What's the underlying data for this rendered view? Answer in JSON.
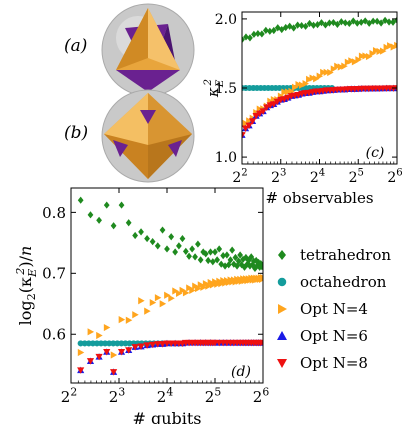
{
  "colors": {
    "tetrahedron": "#1f8a1f",
    "octahedron": "#149c9c",
    "opt4": "#ffa51e",
    "opt6": "#1a1ae6",
    "opt8": "#ee1111",
    "solid_gold": "#e8a53c",
    "solid_purple": "#6a2190",
    "sphere": "#c8c8c8"
  },
  "panel_labels": {
    "a": "(a)",
    "b": "(b)",
    "c": "(c)",
    "d": "(d)"
  },
  "legend": [
    {
      "label": "tetrahedron",
      "marker": "diamond",
      "color_key": "tetrahedron"
    },
    {
      "label": "octahedron",
      "marker": "circle",
      "color_key": "octahedron"
    },
    {
      "label": "Opt N=4",
      "marker": "triangle-right",
      "color_key": "opt4"
    },
    {
      "label": "Opt N=6",
      "marker": "triangle-up",
      "color_key": "opt6"
    },
    {
      "label": "Opt N=8",
      "marker": "triangle-down",
      "color_key": "opt8"
    }
  ],
  "chart_data": [
    {
      "id": "c",
      "type": "scatter",
      "xlabel": "# observables",
      "ylabel": "κ_E^2",
      "xscale": "log2",
      "xlim": [
        4,
        64
      ],
      "ylim": [
        0.95,
        2.05
      ],
      "xticks": [
        {
          "v": 4,
          "b": "2",
          "e": "2"
        },
        {
          "v": 8,
          "b": "2",
          "e": "3"
        },
        {
          "v": 16,
          "b": "2",
          "e": "4"
        },
        {
          "v": 32,
          "b": "2",
          "e": "5"
        },
        {
          "v": 64,
          "b": "2",
          "e": "6"
        }
      ],
      "yticks": [
        {
          "v": 1.0,
          "t": "1.0"
        },
        {
          "v": 1.5,
          "t": "1.5"
        },
        {
          "v": 2.0,
          "t": "2.0"
        }
      ],
      "series": [
        {
          "key": "tetrahedron",
          "marker": "diamond",
          "x_range": [
            4,
            64
          ],
          "n": 40,
          "fn": "tetra_c"
        },
        {
          "key": "octahedron",
          "marker": "circle",
          "x_range": [
            4,
            20
          ],
          "n": 25,
          "fn": "const_c",
          "value": 1.5
        },
        {
          "key": "opt4",
          "marker": "triangle-right",
          "x_range": [
            4,
            64
          ],
          "n": 45,
          "fn": "opt4_c"
        },
        {
          "key": "opt6",
          "marker": "triangle-up",
          "x_range": [
            4,
            64
          ],
          "n": 45,
          "fn": "opt6_c"
        },
        {
          "key": "opt8",
          "marker": "triangle-down",
          "x_range": [
            4,
            64
          ],
          "n": 45,
          "fn": "opt6_c"
        }
      ]
    },
    {
      "id": "d",
      "type": "scatter",
      "xlabel": "# qubits",
      "ylabel": "log2(κ_E^2)/n",
      "xscale": "log2",
      "xlim": [
        4,
        64
      ],
      "ylim": [
        0.52,
        0.84
      ],
      "xticks": [
        {
          "v": 4,
          "b": "2",
          "e": "2"
        },
        {
          "v": 8,
          "b": "2",
          "e": "3"
        },
        {
          "v": 16,
          "b": "2",
          "e": "4"
        },
        {
          "v": 32,
          "b": "2",
          "e": "5"
        },
        {
          "v": 64,
          "b": "2",
          "e": "6"
        }
      ],
      "yticks": [
        {
          "v": 0.6,
          "t": "0.6"
        },
        {
          "v": 0.7,
          "t": "0.7"
        },
        {
          "v": 0.8,
          "t": "0.8"
        }
      ],
      "series": [
        {
          "key": "tetrahedron",
          "marker": "diamond",
          "points": [
            [
              4.6,
              0.82
            ],
            [
              5.3,
              0.796
            ],
            [
              6.0,
              0.787
            ],
            [
              6.7,
              0.812
            ],
            [
              7.4,
              0.778
            ],
            [
              8.3,
              0.812
            ],
            [
              9.2,
              0.783
            ],
            [
              10.1,
              0.762
            ],
            [
              11.0,
              0.768
            ],
            [
              12.0,
              0.757
            ],
            [
              13.0,
              0.752
            ],
            [
              14.0,
              0.745
            ],
            [
              15.0,
              0.771
            ],
            [
              16.0,
              0.74
            ],
            [
              17.0,
              0.76
            ],
            [
              18.0,
              0.735
            ],
            [
              19.0,
              0.745
            ],
            [
              20.0,
              0.757
            ],
            [
              21.0,
              0.736
            ],
            [
              22.0,
              0.728
            ],
            [
              23.0,
              0.74
            ],
            [
              24.0,
              0.727
            ],
            [
              25.0,
              0.748
            ],
            [
              26.0,
              0.722
            ],
            [
              27.0,
              0.735
            ],
            [
              28.0,
              0.732
            ],
            [
              29.0,
              0.721
            ],
            [
              30.0,
              0.735
            ],
            [
              31.0,
              0.719
            ],
            [
              32.0,
              0.735
            ],
            [
              33.0,
              0.722
            ],
            [
              34.0,
              0.74
            ],
            [
              35.0,
              0.715
            ],
            [
              36.0,
              0.729
            ],
            [
              37.0,
              0.712
            ],
            [
              38.0,
              0.73
            ],
            [
              39.0,
              0.714
            ],
            [
              40.0,
              0.722
            ],
            [
              41.0,
              0.738
            ],
            [
              42.0,
              0.715
            ],
            [
              43.0,
              0.726
            ],
            [
              44.0,
              0.712
            ],
            [
              45.0,
              0.72
            ],
            [
              46.0,
              0.73
            ],
            [
              47.0,
              0.714
            ],
            [
              48.0,
              0.723
            ],
            [
              49.0,
              0.71
            ],
            [
              50.0,
              0.726
            ],
            [
              51.0,
              0.715
            ],
            [
              52.0,
              0.721
            ],
            [
              53.0,
              0.712
            ],
            [
              54.0,
              0.727
            ],
            [
              55.0,
              0.714
            ],
            [
              56.0,
              0.72
            ],
            [
              57.0,
              0.708
            ],
            [
              58.0,
              0.721
            ],
            [
              59.0,
              0.713
            ],
            [
              60.0,
              0.718
            ],
            [
              61.0,
              0.71
            ],
            [
              62.0,
              0.716
            ],
            [
              63.0,
              0.711
            ],
            [
              64.0,
              0.714
            ]
          ]
        },
        {
          "key": "octahedron",
          "marker": "circle",
          "x_range": [
            4.6,
            20
          ],
          "n": 26,
          "fn": "const_d",
          "value": 0.585
        },
        {
          "key": "opt4",
          "marker": "triangle-right",
          "points": [
            [
              4.6,
              0.57
            ],
            [
              5.3,
              0.604
            ],
            [
              6.0,
              0.598
            ],
            [
              6.7,
              0.611
            ],
            [
              7.4,
              0.566
            ],
            [
              8.3,
              0.624
            ],
            [
              9.2,
              0.623
            ],
            [
              10.1,
              0.632
            ],
            [
              11.0,
              0.655
            ],
            [
              12.0,
              0.638
            ],
            [
              13.0,
              0.652
            ],
            [
              14.0,
              0.66
            ],
            [
              15.0,
              0.65
            ],
            [
              16.0,
              0.664
            ],
            [
              17.0,
              0.659
            ],
            [
              18.0,
              0.671
            ],
            [
              19.0,
              0.667
            ],
            [
              20.0,
              0.672
            ],
            [
              21.0,
              0.668
            ],
            [
              22.0,
              0.676
            ],
            [
              23.0,
              0.672
            ],
            [
              24.0,
              0.679
            ],
            [
              25.0,
              0.675
            ],
            [
              26.0,
              0.681
            ],
            [
              27.0,
              0.677
            ],
            [
              28.0,
              0.683
            ],
            [
              29.0,
              0.679
            ],
            [
              30.0,
              0.685
            ],
            [
              31.0,
              0.681
            ],
            [
              32.0,
              0.686
            ],
            [
              33.0,
              0.682
            ],
            [
              34.0,
              0.687
            ],
            [
              35.0,
              0.683
            ],
            [
              36.0,
              0.688
            ],
            [
              37.0,
              0.684
            ],
            [
              38.0,
              0.688
            ],
            [
              39.0,
              0.685
            ],
            [
              40.0,
              0.689
            ],
            [
              41.0,
              0.686
            ],
            [
              42.0,
              0.689
            ],
            [
              43.0,
              0.686
            ],
            [
              44.0,
              0.69
            ],
            [
              45.0,
              0.687
            ],
            [
              46.0,
              0.69
            ],
            [
              47.0,
              0.687
            ],
            [
              48.0,
              0.691
            ],
            [
              49.0,
              0.688
            ],
            [
              50.0,
              0.691
            ],
            [
              51.0,
              0.688
            ],
            [
              52.0,
              0.691
            ],
            [
              53.0,
              0.689
            ],
            [
              54.0,
              0.692
            ],
            [
              55.0,
              0.689
            ],
            [
              56.0,
              0.692
            ],
            [
              57.0,
              0.689
            ],
            [
              58.0,
              0.692
            ],
            [
              59.0,
              0.69
            ],
            [
              60.0,
              0.692
            ],
            [
              61.0,
              0.69
            ],
            [
              62.0,
              0.693
            ],
            [
              63.0,
              0.69
            ],
            [
              64.0,
              0.693
            ]
          ]
        },
        {
          "key": "opt6",
          "marker": "triangle-up",
          "points": [
            [
              4.6,
              0.541
            ],
            [
              5.3,
              0.556
            ],
            [
              6.0,
              0.563
            ],
            [
              6.7,
              0.571
            ],
            [
              7.4,
              0.538
            ],
            [
              8.3,
              0.571
            ],
            [
              9.2,
              0.574
            ],
            [
              10.1,
              0.579
            ],
            [
              11.0,
              0.58
            ],
            [
              12.0,
              0.582
            ],
            [
              13.0,
              0.583
            ],
            [
              14.0,
              0.584
            ],
            [
              15.0,
              0.584
            ],
            [
              16.0,
              0.585
            ],
            [
              18.0,
              0.585
            ],
            [
              20.0,
              0.585
            ],
            [
              22.0,
              0.586
            ],
            [
              24.0,
              0.586
            ],
            [
              26.0,
              0.586
            ],
            [
              28.0,
              0.586
            ],
            [
              30.0,
              0.586
            ],
            [
              32.0,
              0.586
            ],
            [
              34.0,
              0.586
            ],
            [
              36.0,
              0.586
            ],
            [
              38.0,
              0.586
            ],
            [
              40.0,
              0.586
            ],
            [
              42.0,
              0.586
            ],
            [
              44.0,
              0.586
            ],
            [
              46.0,
              0.586
            ],
            [
              48.0,
              0.586
            ],
            [
              50.0,
              0.586
            ],
            [
              52.0,
              0.586
            ],
            [
              54.0,
              0.586
            ],
            [
              56.0,
              0.586
            ],
            [
              58.0,
              0.586
            ],
            [
              60.0,
              0.586
            ],
            [
              62.0,
              0.586
            ],
            [
              64.0,
              0.586
            ]
          ]
        },
        {
          "key": "opt8",
          "marker": "triangle-down",
          "points": [
            [
              4.6,
              0.541
            ],
            [
              5.3,
              0.556
            ],
            [
              6.0,
              0.563
            ],
            [
              6.7,
              0.571
            ],
            [
              7.4,
              0.538
            ],
            [
              8.3,
              0.571
            ],
            [
              9.2,
              0.574
            ],
            [
              10.1,
              0.579
            ],
            [
              11.0,
              0.58
            ],
            [
              12.0,
              0.582
            ],
            [
              13.0,
              0.583
            ],
            [
              14.0,
              0.584
            ],
            [
              15.0,
              0.584
            ],
            [
              16.0,
              0.585
            ],
            [
              17.0,
              0.585
            ],
            [
              18.0,
              0.585
            ],
            [
              19.0,
              0.585
            ],
            [
              20.0,
              0.585
            ],
            [
              21.0,
              0.586
            ],
            [
              22.0,
              0.586
            ],
            [
              23.0,
              0.586
            ],
            [
              24.0,
              0.586
            ],
            [
              25.0,
              0.586
            ],
            [
              26.0,
              0.586
            ],
            [
              27.0,
              0.586
            ],
            [
              28.0,
              0.586
            ],
            [
              29.0,
              0.586
            ],
            [
              30.0,
              0.586
            ],
            [
              31.0,
              0.586
            ],
            [
              32.0,
              0.586
            ],
            [
              34.0,
              0.586
            ],
            [
              36.0,
              0.586
            ],
            [
              38.0,
              0.586
            ],
            [
              40.0,
              0.586
            ],
            [
              42.0,
              0.586
            ],
            [
              44.0,
              0.586
            ],
            [
              46.0,
              0.586
            ],
            [
              48.0,
              0.586
            ],
            [
              50.0,
              0.586
            ],
            [
              52.0,
              0.586
            ],
            [
              54.0,
              0.586
            ],
            [
              56.0,
              0.586
            ],
            [
              58.0,
              0.586
            ],
            [
              60.0,
              0.586
            ],
            [
              62.0,
              0.586
            ],
            [
              64.0,
              0.586
            ]
          ]
        }
      ]
    }
  ]
}
